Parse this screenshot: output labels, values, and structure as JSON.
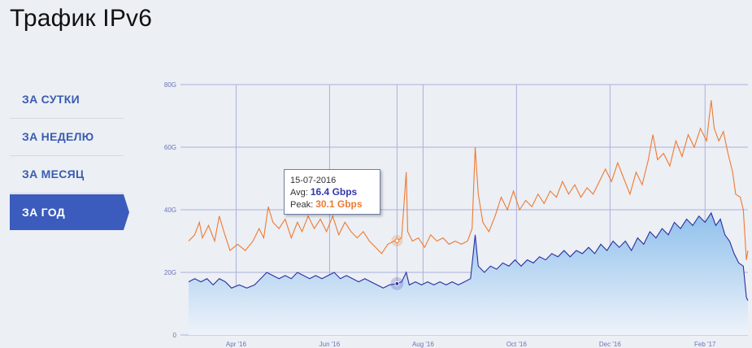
{
  "page": {
    "title": "Трафик IPv6"
  },
  "nav": {
    "items": [
      {
        "label": "ЗА СУТКИ",
        "active": false
      },
      {
        "label": "ЗА НЕДЕЛЮ",
        "active": false
      },
      {
        "label": "ЗА МЕСЯЦ",
        "active": false
      },
      {
        "label": "ЗА ГОД",
        "active": true
      }
    ]
  },
  "tooltip": {
    "date": "15-07-2016",
    "avg_label": "Avg:",
    "avg_value": "16.4 Gbps",
    "peak_label": "Peak:",
    "peak_value": "30.1 Gbps"
  },
  "colors": {
    "avg_line": "#2b2f9e",
    "peak_line": "#ee7a32",
    "area_top": "#8fc0ec",
    "area_bottom": "#eef3fa",
    "grid": "#aab0dc",
    "nav_active": "#3b5cbc"
  },
  "chart_data": {
    "type": "line",
    "ylim": [
      0,
      80
    ],
    "y_tick_labels": [
      "0",
      "20G",
      "40G",
      "60G",
      "80G"
    ],
    "x_tick_labels": [
      "Apr '16",
      "Jun '16",
      "Aug '16",
      "Oct '16",
      "Dec '16",
      "Feb '17"
    ],
    "x_range": [
      "2016-03-01",
      "2017-03-01"
    ],
    "x_ticks": [
      "2016-04-01",
      "2016-06-01",
      "2016-08-01",
      "2016-10-01",
      "2016-12-01",
      "2017-02-01"
    ],
    "grid": true,
    "highlight_date": "2016-07-15",
    "series": [
      {
        "name": "Peak",
        "points": [
          [
            "2016-03-01",
            30
          ],
          [
            "2016-03-05",
            32
          ],
          [
            "2016-03-08",
            36
          ],
          [
            "2016-03-10",
            31
          ],
          [
            "2016-03-14",
            35
          ],
          [
            "2016-03-18",
            30
          ],
          [
            "2016-03-21",
            38
          ],
          [
            "2016-03-24",
            33
          ],
          [
            "2016-03-28",
            27
          ],
          [
            "2016-04-02",
            29
          ],
          [
            "2016-04-07",
            27
          ],
          [
            "2016-04-12",
            30
          ],
          [
            "2016-04-16",
            34
          ],
          [
            "2016-04-19",
            31
          ],
          [
            "2016-04-22",
            41
          ],
          [
            "2016-04-25",
            36
          ],
          [
            "2016-04-29",
            34
          ],
          [
            "2016-05-03",
            37
          ],
          [
            "2016-05-07",
            31
          ],
          [
            "2016-05-11",
            36
          ],
          [
            "2016-05-14",
            33
          ],
          [
            "2016-05-18",
            38
          ],
          [
            "2016-05-22",
            34
          ],
          [
            "2016-05-26",
            37
          ],
          [
            "2016-05-30",
            33
          ],
          [
            "2016-06-03",
            38
          ],
          [
            "2016-06-07",
            32
          ],
          [
            "2016-06-11",
            36
          ],
          [
            "2016-06-15",
            33
          ],
          [
            "2016-06-19",
            31
          ],
          [
            "2016-06-23",
            33
          ],
          [
            "2016-06-27",
            30
          ],
          [
            "2016-07-01",
            28
          ],
          [
            "2016-07-05",
            26
          ],
          [
            "2016-07-09",
            29
          ],
          [
            "2016-07-13",
            30
          ],
          [
            "2016-07-15",
            30.1
          ],
          [
            "2016-07-18",
            31
          ],
          [
            "2016-07-21",
            52
          ],
          [
            "2016-07-22",
            33
          ],
          [
            "2016-07-25",
            30
          ],
          [
            "2016-07-29",
            31
          ],
          [
            "2016-08-02",
            28
          ],
          [
            "2016-08-06",
            32
          ],
          [
            "2016-08-10",
            30
          ],
          [
            "2016-08-14",
            31
          ],
          [
            "2016-08-18",
            29
          ],
          [
            "2016-08-22",
            30
          ],
          [
            "2016-08-26",
            29
          ],
          [
            "2016-08-30",
            30
          ],
          [
            "2016-09-02",
            34
          ],
          [
            "2016-09-04",
            60
          ],
          [
            "2016-09-06",
            45
          ],
          [
            "2016-09-09",
            36
          ],
          [
            "2016-09-13",
            33
          ],
          [
            "2016-09-17",
            38
          ],
          [
            "2016-09-21",
            44
          ],
          [
            "2016-09-25",
            40
          ],
          [
            "2016-09-29",
            46
          ],
          [
            "2016-10-03",
            40
          ],
          [
            "2016-10-07",
            43
          ],
          [
            "2016-10-11",
            41
          ],
          [
            "2016-10-15",
            45
          ],
          [
            "2016-10-19",
            42
          ],
          [
            "2016-10-23",
            46
          ],
          [
            "2016-10-27",
            44
          ],
          [
            "2016-10-31",
            49
          ],
          [
            "2016-11-04",
            45
          ],
          [
            "2016-11-08",
            48
          ],
          [
            "2016-11-12",
            44
          ],
          [
            "2016-11-16",
            47
          ],
          [
            "2016-11-20",
            45
          ],
          [
            "2016-11-24",
            49
          ],
          [
            "2016-11-28",
            53
          ],
          [
            "2016-12-02",
            49
          ],
          [
            "2016-12-06",
            55
          ],
          [
            "2016-12-10",
            50
          ],
          [
            "2016-12-14",
            45
          ],
          [
            "2016-12-18",
            52
          ],
          [
            "2016-12-22",
            48
          ],
          [
            "2016-12-26",
            56
          ],
          [
            "2016-12-29",
            64
          ],
          [
            "2017-01-01",
            56
          ],
          [
            "2017-01-05",
            58
          ],
          [
            "2017-01-09",
            54
          ],
          [
            "2017-01-13",
            62
          ],
          [
            "2017-01-17",
            57
          ],
          [
            "2017-01-21",
            64
          ],
          [
            "2017-01-25",
            60
          ],
          [
            "2017-01-29",
            66
          ],
          [
            "2017-02-02",
            62
          ],
          [
            "2017-02-05",
            75
          ],
          [
            "2017-02-07",
            66
          ],
          [
            "2017-02-10",
            62
          ],
          [
            "2017-02-13",
            65
          ],
          [
            "2017-02-16",
            58
          ],
          [
            "2017-02-19",
            52
          ],
          [
            "2017-02-21",
            45
          ],
          [
            "2017-02-24",
            44
          ],
          [
            "2017-02-26",
            40
          ],
          [
            "2017-02-28",
            24
          ],
          [
            "2017-03-01",
            27
          ]
        ]
      },
      {
        "name": "Avg",
        "points": [
          [
            "2016-03-01",
            17
          ],
          [
            "2016-03-05",
            18
          ],
          [
            "2016-03-09",
            17
          ],
          [
            "2016-03-13",
            18
          ],
          [
            "2016-03-17",
            16
          ],
          [
            "2016-03-21",
            18
          ],
          [
            "2016-03-25",
            17
          ],
          [
            "2016-03-29",
            15
          ],
          [
            "2016-04-03",
            16
          ],
          [
            "2016-04-08",
            15
          ],
          [
            "2016-04-13",
            16
          ],
          [
            "2016-04-17",
            18
          ],
          [
            "2016-04-21",
            20
          ],
          [
            "2016-04-25",
            19
          ],
          [
            "2016-04-29",
            18
          ],
          [
            "2016-05-03",
            19
          ],
          [
            "2016-05-07",
            18
          ],
          [
            "2016-05-11",
            20
          ],
          [
            "2016-05-15",
            19
          ],
          [
            "2016-05-19",
            18
          ],
          [
            "2016-05-23",
            19
          ],
          [
            "2016-05-27",
            18
          ],
          [
            "2016-05-31",
            19
          ],
          [
            "2016-06-04",
            20
          ],
          [
            "2016-06-08",
            18
          ],
          [
            "2016-06-12",
            19
          ],
          [
            "2016-06-16",
            18
          ],
          [
            "2016-06-20",
            17
          ],
          [
            "2016-06-24",
            18
          ],
          [
            "2016-06-28",
            17
          ],
          [
            "2016-07-02",
            16
          ],
          [
            "2016-07-06",
            15
          ],
          [
            "2016-07-10",
            16
          ],
          [
            "2016-07-15",
            16.4
          ],
          [
            "2016-07-18",
            17
          ],
          [
            "2016-07-21",
            20
          ],
          [
            "2016-07-23",
            16
          ],
          [
            "2016-07-27",
            17
          ],
          [
            "2016-07-31",
            16
          ],
          [
            "2016-08-04",
            17
          ],
          [
            "2016-08-08",
            16
          ],
          [
            "2016-08-12",
            17
          ],
          [
            "2016-08-16",
            16
          ],
          [
            "2016-08-20",
            17
          ],
          [
            "2016-08-24",
            16
          ],
          [
            "2016-08-28",
            17
          ],
          [
            "2016-09-01",
            18
          ],
          [
            "2016-09-04",
            32
          ],
          [
            "2016-09-06",
            22
          ],
          [
            "2016-09-10",
            20
          ],
          [
            "2016-09-14",
            22
          ],
          [
            "2016-09-18",
            21
          ],
          [
            "2016-09-22",
            23
          ],
          [
            "2016-09-26",
            22
          ],
          [
            "2016-09-30",
            24
          ],
          [
            "2016-10-04",
            22
          ],
          [
            "2016-10-08",
            24
          ],
          [
            "2016-10-12",
            23
          ],
          [
            "2016-10-16",
            25
          ],
          [
            "2016-10-20",
            24
          ],
          [
            "2016-10-24",
            26
          ],
          [
            "2016-10-28",
            25
          ],
          [
            "2016-11-01",
            27
          ],
          [
            "2016-11-05",
            25
          ],
          [
            "2016-11-09",
            27
          ],
          [
            "2016-11-13",
            26
          ],
          [
            "2016-11-17",
            28
          ],
          [
            "2016-11-21",
            26
          ],
          [
            "2016-11-25",
            29
          ],
          [
            "2016-11-29",
            27
          ],
          [
            "2016-12-03",
            30
          ],
          [
            "2016-12-07",
            28
          ],
          [
            "2016-12-11",
            30
          ],
          [
            "2016-12-15",
            27
          ],
          [
            "2016-12-19",
            31
          ],
          [
            "2016-12-23",
            29
          ],
          [
            "2016-12-27",
            33
          ],
          [
            "2016-12-31",
            31
          ],
          [
            "2017-01-04",
            34
          ],
          [
            "2017-01-08",
            32
          ],
          [
            "2017-01-12",
            36
          ],
          [
            "2017-01-16",
            34
          ],
          [
            "2017-01-20",
            37
          ],
          [
            "2017-01-24",
            35
          ],
          [
            "2017-01-28",
            38
          ],
          [
            "2017-02-01",
            36
          ],
          [
            "2017-02-05",
            39
          ],
          [
            "2017-02-08",
            35
          ],
          [
            "2017-02-11",
            37
          ],
          [
            "2017-02-14",
            32
          ],
          [
            "2017-02-17",
            30
          ],
          [
            "2017-02-20",
            26
          ],
          [
            "2017-02-23",
            23
          ],
          [
            "2017-02-26",
            22
          ],
          [
            "2017-02-28",
            12
          ],
          [
            "2017-03-01",
            11
          ]
        ]
      }
    ]
  }
}
